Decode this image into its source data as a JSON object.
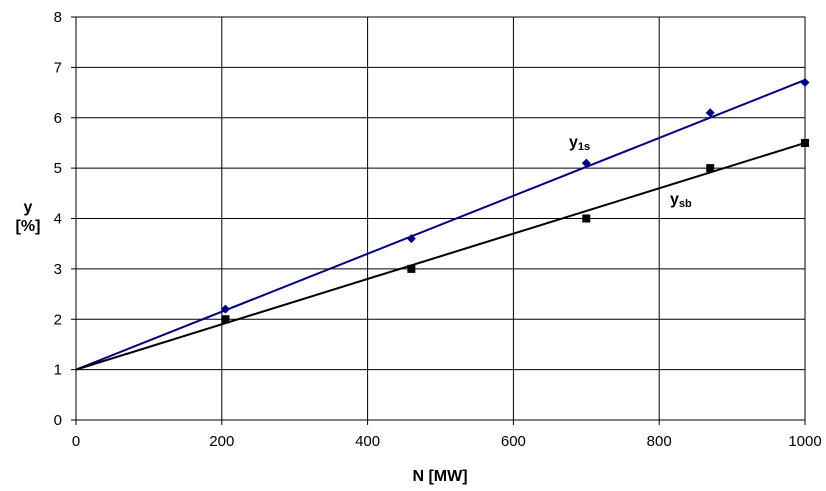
{
  "chart_data": {
    "type": "scatter",
    "title": "",
    "xlabel": "N [MW]",
    "ylabel_line1": "y",
    "ylabel_line2": "[%]",
    "xlim": [
      0,
      1000
    ],
    "ylim": [
      0,
      8
    ],
    "xticks": [
      0,
      200,
      400,
      600,
      800,
      1000
    ],
    "yticks": [
      0,
      1,
      2,
      3,
      4,
      5,
      6,
      7,
      8
    ],
    "grid": true,
    "series": [
      {
        "name": "y1s",
        "label_main": "y",
        "label_sub": "1s",
        "color": "#000080",
        "marker": "diamond",
        "x": [
          205,
          460,
          700,
          870,
          1000
        ],
        "y": [
          2.2,
          3.6,
          5.1,
          6.1,
          6.7
        ],
        "trend": {
          "x": [
            0,
            1000
          ],
          "y": [
            1.0,
            6.75
          ],
          "color": "#000080"
        }
      },
      {
        "name": "ysb",
        "label_main": "y",
        "label_sub": "sb",
        "color": "#000000",
        "marker": "square",
        "x": [
          205,
          460,
          700,
          870,
          1000
        ],
        "y": [
          2.0,
          3.0,
          4.0,
          5.0,
          5.5
        ],
        "trend": {
          "x": [
            0,
            1000
          ],
          "y": [
            1.0,
            5.5
          ],
          "color": "#000000"
        }
      }
    ]
  }
}
